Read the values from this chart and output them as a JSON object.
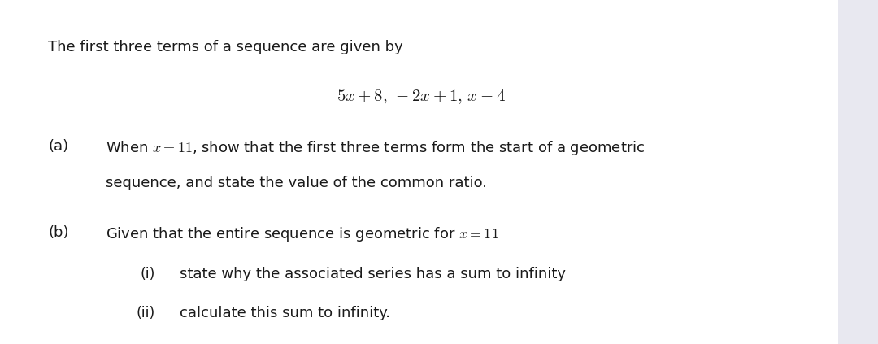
{
  "bg_color": "#e8e8f0",
  "panel_color": "#ffffff",
  "text_color": "#1a1a1a",
  "top_line": "The first three terms of a sequence are given by",
  "formula": "$5x+8,\\,-2x+1,\\,x-4$",
  "part_a_label": "(a)",
  "part_a_text1": "When $x=11$, show that the first three terms form the start of a geometric",
  "part_a_text2": "sequence, and state the value of the common ratio.",
  "part_b_label": "(b)",
  "part_b_text": "Given that the entire sequence is geometric for $x=11$",
  "part_bi_label": "(i)",
  "part_bi_text": "state why the associated series has a sum to infinity",
  "part_bii_label": "(ii)",
  "part_bii_text": "calculate this sum to infinity.",
  "font_size_main": 13.0,
  "font_size_formula": 14.0
}
